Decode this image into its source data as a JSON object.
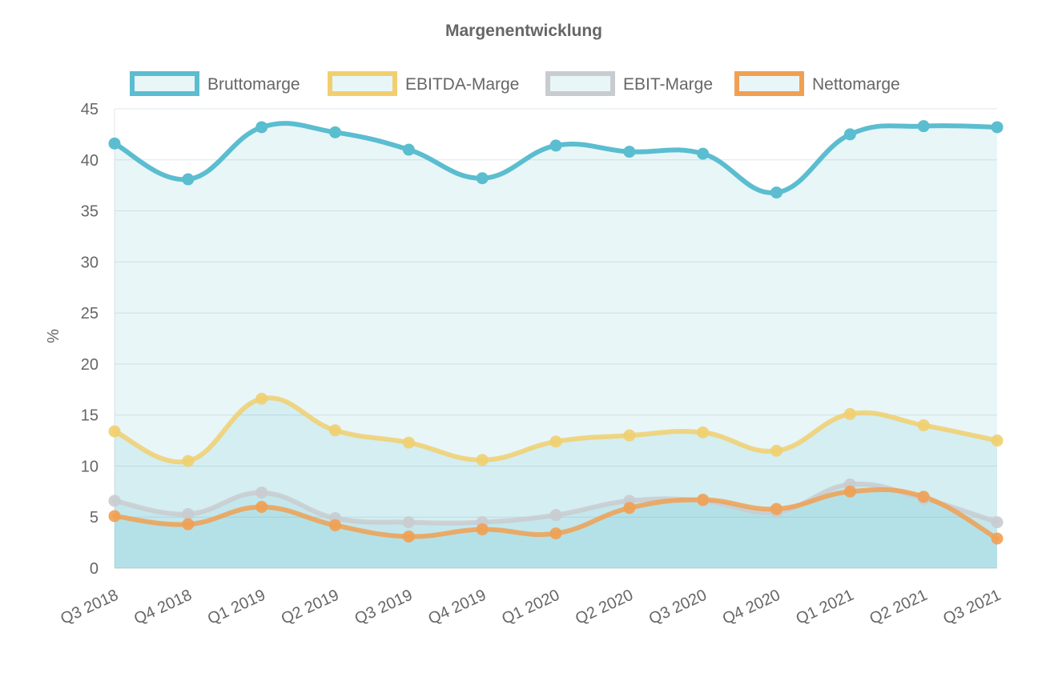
{
  "chart_data": {
    "type": "area",
    "title": "Margenentwicklung",
    "xlabel": "",
    "ylabel": "%",
    "ylim": [
      0,
      45
    ],
    "yticks": [
      0,
      5,
      10,
      15,
      20,
      25,
      30,
      35,
      40,
      45
    ],
    "legend_position": "top",
    "grid": true,
    "categories": [
      "Q3 2018",
      "Q4 2018",
      "Q1 2019",
      "Q2 2019",
      "Q3 2019",
      "Q4 2019",
      "Q1 2020",
      "Q2 2020",
      "Q3 2020",
      "Q4 2020",
      "Q1 2021",
      "Q2 2021",
      "Q3 2021"
    ],
    "series": [
      {
        "name": "Bruttomarge",
        "color": "#5bbdd0",
        "values": [
          41.6,
          38.1,
          43.2,
          42.7,
          41.0,
          38.2,
          41.4,
          40.8,
          40.6,
          36.8,
          42.5,
          43.3,
          43.2
        ]
      },
      {
        "name": "EBITDA-Marge",
        "color": "#f1cf6f",
        "values": [
          13.4,
          10.5,
          16.6,
          13.5,
          12.3,
          10.6,
          12.4,
          13.0,
          13.3,
          11.5,
          15.1,
          14.0,
          12.5
        ]
      },
      {
        "name": "EBIT-Marge",
        "color": "#c9cbcf",
        "values": [
          6.6,
          5.3,
          7.4,
          4.9,
          4.5,
          4.5,
          5.2,
          6.6,
          6.6,
          5.5,
          8.2,
          6.8,
          4.5
        ]
      },
      {
        "name": "Nettomarge",
        "color": "#f0a052",
        "values": [
          5.1,
          4.3,
          6.0,
          4.2,
          3.1,
          3.8,
          3.4,
          5.9,
          6.7,
          5.8,
          7.5,
          7.0,
          2.9
        ]
      }
    ]
  }
}
